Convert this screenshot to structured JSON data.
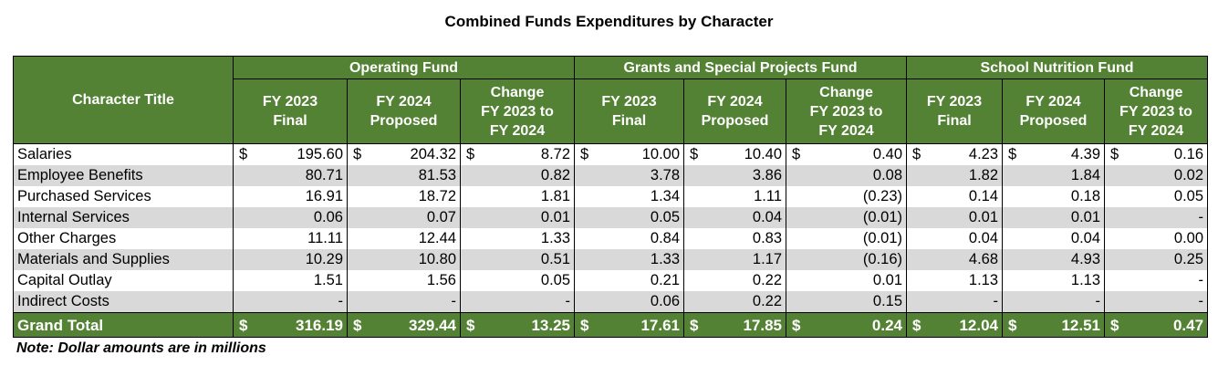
{
  "title": "Combined Funds Expenditures by Character",
  "header": {
    "character_title": "Character Title",
    "groups": [
      "Operating Fund",
      "Grants and Special Projects Fund",
      "School Nutrition Fund"
    ],
    "subs": [
      [
        "FY 2023",
        "Final"
      ],
      [
        "FY 2024",
        "Proposed"
      ],
      [
        "Change",
        "FY 2023 to",
        "FY 2024"
      ]
    ]
  },
  "rows": [
    {
      "label": "Salaries",
      "values": [
        "195.60",
        "204.32",
        "8.72",
        "10.00",
        "10.40",
        "0.40",
        "4.23",
        "4.39",
        "0.16"
      ],
      "dollar": true
    },
    {
      "label": "Employee Benefits",
      "values": [
        "80.71",
        "81.53",
        "0.82",
        "3.78",
        "3.86",
        "0.08",
        "1.82",
        "1.84",
        "0.02"
      ],
      "dollar": false
    },
    {
      "label": "Purchased Services",
      "values": [
        "16.91",
        "18.72",
        "1.81",
        "1.34",
        "1.11",
        "(0.23)",
        "0.14",
        "0.18",
        "0.05"
      ],
      "dollar": false
    },
    {
      "label": "Internal Services",
      "values": [
        "0.06",
        "0.07",
        "0.01",
        "0.05",
        "0.04",
        "(0.01)",
        "0.01",
        "0.01",
        "-"
      ],
      "dollar": false
    },
    {
      "label": "Other Charges",
      "values": [
        "11.11",
        "12.44",
        "1.33",
        "0.84",
        "0.83",
        "(0.01)",
        "0.04",
        "0.04",
        "0.00"
      ],
      "dollar": false
    },
    {
      "label": "Materials and Supplies",
      "values": [
        "10.29",
        "10.80",
        "0.51",
        "1.33",
        "1.17",
        "(0.16)",
        "4.68",
        "4.93",
        "0.25"
      ],
      "dollar": false
    },
    {
      "label": "Capital Outlay",
      "values": [
        "1.51",
        "1.56",
        "0.05",
        "0.21",
        "0.22",
        "0.01",
        "1.13",
        "1.13",
        "-"
      ],
      "dollar": false
    },
    {
      "label": "Indirect Costs",
      "values": [
        "-",
        "-",
        "-",
        "0.06",
        "0.22",
        "0.15",
        "-",
        "-",
        "-"
      ],
      "dollar": false
    }
  ],
  "total": {
    "label": "Grand Total",
    "values": [
      "316.19",
      "329.44",
      "13.25",
      "17.61",
      "17.85",
      "0.24",
      "12.04",
      "12.51",
      "0.47"
    ],
    "dollar": true
  },
  "currency_symbol": "$",
  "note": "Note: Dollar amounts are in millions",
  "colors": {
    "header_green": "#548235",
    "alt_row_gray": "#d9d9d9"
  }
}
